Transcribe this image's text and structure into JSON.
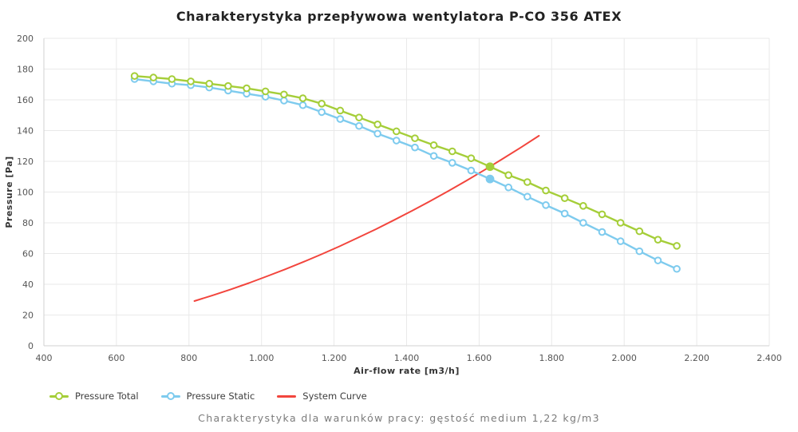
{
  "header": {
    "title": "Charakterystyka przepływowa wentylatora P-CO 356 ATEX"
  },
  "footer": {
    "text": "Charakterystyka dla warunków pracy: gęstość medium 1,22 kg/m3"
  },
  "colors": {
    "background": "#ffffff",
    "grid": "#e9e9e9",
    "axis_line": "#d2d2d2",
    "tick_text": "#555555",
    "axis_title_text": "#333333",
    "title_text": "#222222",
    "footer_text": "#7b7b7b",
    "legend_text": "#3d3d3d",
    "pressure_total": "#a5ce39",
    "pressure_static": "#7ecbee",
    "system_curve": "#f2453d"
  },
  "chart_data": {
    "type": "line",
    "title": "Charakterystyka przepływowa wentylatora P-CO 356 ATEX",
    "subtitle": "Charakterystyka dla warunków pracy: gęstość medium 1,22 kg/m3",
    "xlabel": "Air-flow rate [m3/h]",
    "ylabel": "Pressure [Pa]",
    "xlim": [
      400,
      2400
    ],
    "ylim": [
      0,
      200
    ],
    "grid": true,
    "legend_position": "bottom-left",
    "x_tick_values": [
      400,
      600,
      800,
      1000,
      1200,
      1400,
      1600,
      1800,
      2000,
      2200,
      2400
    ],
    "x_tick_labels": [
      "400",
      "600",
      "800",
      "1.000",
      "1.200",
      "1.400",
      "1.600",
      "1.800",
      "2.000",
      "2.200",
      "2.400"
    ],
    "y_tick_values": [
      0,
      20,
      40,
      60,
      80,
      100,
      120,
      140,
      160,
      180,
      200
    ],
    "y_tick_labels": [
      "0",
      "20",
      "40",
      "60",
      "80",
      "100",
      "120",
      "140",
      "160",
      "180",
      "200"
    ],
    "series": [
      {
        "name": "Pressure Total",
        "color": "#a5ce39",
        "marker": "circle-open",
        "highlight_index": 19,
        "x": [
          650,
          702,
          753,
          805,
          856,
          908,
          959,
          1011,
          1062,
          1114,
          1166,
          1217,
          1269,
          1320,
          1372,
          1423,
          1475,
          1526,
          1578,
          1630,
          1681,
          1733,
          1784,
          1836,
          1887,
          1939,
          1990,
          2042,
          2093,
          2145
        ],
        "y": [
          175.5,
          174.5,
          173.5,
          172,
          170.5,
          169,
          167.5,
          165.5,
          163.5,
          161,
          157.5,
          153,
          148.5,
          144,
          139.5,
          135,
          130.5,
          126.5,
          122,
          116.5,
          111,
          106.5,
          101,
          96,
          91,
          85.5,
          80,
          74.5,
          69,
          65
        ]
      },
      {
        "name": "Pressure Static",
        "color": "#7ecbee",
        "marker": "circle-open",
        "highlight_index": 19,
        "x": [
          650,
          702,
          753,
          805,
          856,
          908,
          959,
          1011,
          1062,
          1114,
          1166,
          1217,
          1269,
          1320,
          1372,
          1423,
          1475,
          1526,
          1578,
          1630,
          1681,
          1733,
          1784,
          1836,
          1887,
          1939,
          1990,
          2042,
          2093,
          2145
        ],
        "y": [
          173.5,
          172,
          170.5,
          169.5,
          168,
          166,
          164,
          162,
          159.5,
          156.5,
          152,
          147.5,
          143,
          138,
          133.5,
          129,
          123.5,
          119,
          114,
          108.5,
          103,
          97,
          91.5,
          86,
          80,
          74,
          68,
          61.5,
          55.5,
          50
        ]
      },
      {
        "name": "System Curve",
        "color": "#f2453d",
        "marker": "none",
        "x": [
          815,
          865,
          915,
          965,
          1015,
          1065,
          1115,
          1165,
          1215,
          1265,
          1315,
          1365,
          1415,
          1465,
          1515,
          1565,
          1615,
          1665,
          1715,
          1765
        ],
        "y": [
          29.1,
          32.8,
          36.7,
          40.8,
          45.2,
          49.7,
          54.5,
          59.5,
          64.7,
          70.2,
          75.8,
          81.7,
          87.8,
          94.1,
          100.6,
          107.4,
          114.4,
          121.6,
          129.0,
          136.6
        ]
      }
    ],
    "operating_point": {
      "airflow_m3h": 1630,
      "pressure_total_pa": 116.5,
      "pressure_static_pa": 108.5
    }
  }
}
